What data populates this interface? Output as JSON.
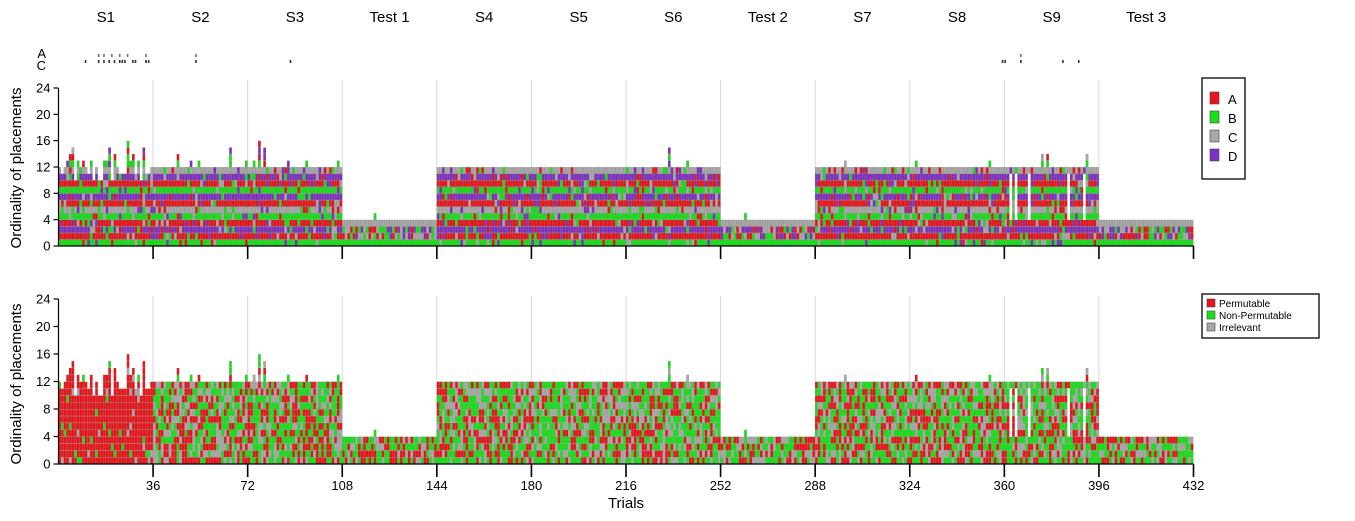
{
  "chart_data": [
    {
      "type": "heatmap",
      "subtype": "stacked-cell-raster",
      "panel": "top",
      "ylabel": "Ordinality of placements",
      "ylim": [
        0,
        24
      ],
      "yticks": [
        0,
        4,
        8,
        12,
        16,
        20,
        24
      ],
      "xlim": [
        1,
        432
      ],
      "xticks": [
        36,
        72,
        108,
        144,
        180,
        216,
        252,
        288,
        324,
        360,
        396,
        432
      ],
      "sessions": [
        {
          "label": "S1",
          "start": 1,
          "end": 36,
          "rows": 12
        },
        {
          "label": "S2",
          "start": 37,
          "end": 72,
          "rows": 12
        },
        {
          "label": "S3",
          "start": 73,
          "end": 108,
          "rows": 12
        },
        {
          "label": "Test 1",
          "start": 109,
          "end": 144,
          "rows": 4
        },
        {
          "label": "S4",
          "start": 145,
          "end": 180,
          "rows": 12
        },
        {
          "label": "S5",
          "start": 181,
          "end": 216,
          "rows": 12
        },
        {
          "label": "S6",
          "start": 217,
          "end": 252,
          "rows": 12
        },
        {
          "label": "Test 2",
          "start": 253,
          "end": 288,
          "rows": 4
        },
        {
          "label": "S7",
          "start": 289,
          "end": 324,
          "rows": 12
        },
        {
          "label": "S8",
          "start": 325,
          "end": 360,
          "rows": 12
        },
        {
          "label": "S9",
          "start": 361,
          "end": 396,
          "rows": 12
        },
        {
          "label": "Test 3",
          "start": 397,
          "end": 432,
          "rows": 4
        }
      ],
      "legend": [
        {
          "label": "A",
          "color": "#e8141a"
        },
        {
          "label": "B",
          "color": "#18e018"
        },
        {
          "label": "C",
          "color": "#a8a8a8"
        },
        {
          "label": "D",
          "color": "#8030c0"
        }
      ],
      "marker_rows": [
        {
          "label": "A",
          "trials": [
            16,
            18,
            21,
            24,
            27,
            34,
            53,
            367
          ]
        },
        {
          "label": "C",
          "trials": [
            11,
            16,
            18,
            20,
            22,
            24,
            25,
            26,
            29,
            30,
            34,
            35,
            53,
            89,
            360,
            361,
            367,
            383,
            389
          ]
        }
      ],
      "overflow_trials": [
        {
          "trial": 5,
          "height": 14
        },
        {
          "trial": 6,
          "height": 15
        },
        {
          "trial": 20,
          "height": 15
        },
        {
          "trial": 22,
          "height": 14
        },
        {
          "trial": 27,
          "height": 16
        },
        {
          "trial": 29,
          "height": 14
        },
        {
          "trial": 33,
          "height": 15
        },
        {
          "trial": 46,
          "height": 14
        },
        {
          "trial": 66,
          "height": 15
        },
        {
          "trial": 77,
          "height": 16
        },
        {
          "trial": 79,
          "height": 15
        },
        {
          "trial": 233,
          "height": 15
        },
        {
          "trial": 375,
          "height": 14
        },
        {
          "trial": 377,
          "height": 14
        },
        {
          "trial": 392,
          "height": 14
        }
      ]
    },
    {
      "type": "heatmap",
      "subtype": "stacked-cell-raster",
      "panel": "bottom",
      "xlabel": "Trials",
      "ylabel": "Ordinality of placements",
      "ylim": [
        0,
        24
      ],
      "yticks": [
        0,
        4,
        8,
        12,
        16,
        20,
        24
      ],
      "xlim": [
        1,
        432
      ],
      "xticks": [
        36,
        72,
        108,
        144,
        180,
        216,
        252,
        288,
        324,
        360,
        396,
        432
      ],
      "legend": [
        {
          "label": "Permutable",
          "color": "#e8141a"
        },
        {
          "label": "Non-Permutable",
          "color": "#18e018"
        },
        {
          "label": "Irrelevant",
          "color": "#a8a8a8"
        }
      ]
    }
  ]
}
